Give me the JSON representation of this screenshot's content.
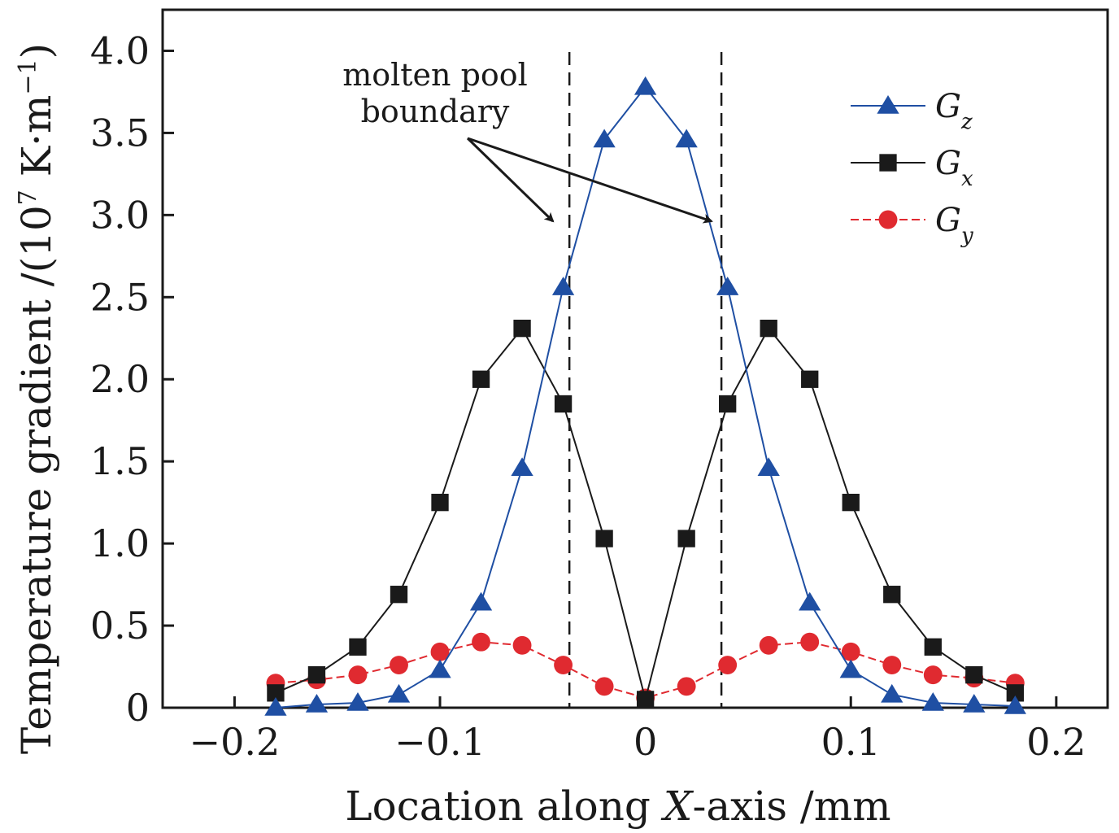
{
  "chart_data": {
    "type": "line",
    "xlabel_pre": "Location along ",
    "xlabel_var": "X",
    "xlabel_post": "-axis /mm",
    "ylabel_pre": "Temperature gradient /(10",
    "ylabel_exp": "7",
    "ylabel_post": " K·m",
    "ylabel_exp2": "−1",
    "ylabel_close": ")",
    "xlim": [
      -0.235,
      0.225
    ],
    "ylim": [
      0,
      4.25
    ],
    "xticks": [
      -0.2,
      -0.1,
      0,
      0.1,
      0.2
    ],
    "xtick_labels": [
      "−0.2",
      "−0.1",
      "0",
      "0.1",
      "0.2"
    ],
    "yticks": [
      0,
      0.5,
      1.0,
      1.5,
      2.0,
      2.5,
      3.0,
      3.5,
      4.0
    ],
    "ytick_labels": [
      "0",
      "0.5",
      "1.0",
      "1.5",
      "2.0",
      "2.5",
      "3.0",
      "3.5",
      "4.0"
    ],
    "x": [
      -0.18,
      -0.16,
      -0.14,
      -0.12,
      -0.1,
      -0.08,
      -0.06,
      -0.04,
      -0.02,
      0,
      0.02,
      0.04,
      0.06,
      0.08,
      0.1,
      0.12,
      0.14,
      0.16,
      0.18
    ],
    "series": [
      {
        "name": "Gz",
        "letter": "G",
        "sub": "z",
        "color": "#1f4fa3",
        "marker": "triangle",
        "values": [
          0.0,
          0.02,
          0.03,
          0.08,
          0.23,
          0.64,
          1.46,
          2.56,
          3.46,
          3.78,
          3.46,
          2.56,
          1.46,
          0.64,
          0.23,
          0.08,
          0.03,
          0.02,
          0.01
        ]
      },
      {
        "name": "Gx",
        "letter": "G",
        "sub": "x",
        "color": "#1a1a1a",
        "marker": "square",
        "values": [
          0.09,
          0.2,
          0.37,
          0.69,
          1.25,
          2.0,
          2.31,
          1.85,
          1.03,
          0.05,
          1.03,
          1.85,
          2.31,
          2.0,
          1.25,
          0.69,
          0.37,
          0.2,
          0.09
        ]
      },
      {
        "name": "Gy",
        "letter": "G",
        "sub": "y",
        "color": "#e02a30",
        "marker": "circle",
        "values": [
          0.15,
          0.17,
          0.2,
          0.26,
          0.34,
          0.4,
          0.38,
          0.26,
          0.13,
          0.06,
          0.13,
          0.26,
          0.38,
          0.4,
          0.34,
          0.26,
          0.2,
          0.18,
          0.15
        ]
      }
    ],
    "boundaries": [
      -0.037,
      0.037
    ],
    "annotation": {
      "line1": "molten pool",
      "line2": "boundary"
    },
    "legend_position": "top-right"
  }
}
